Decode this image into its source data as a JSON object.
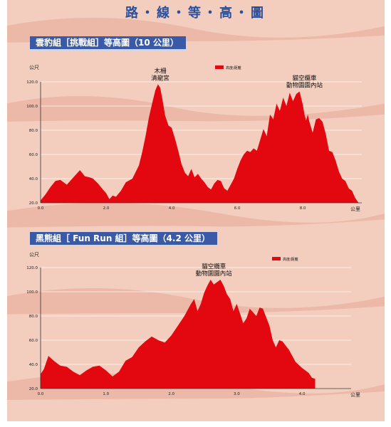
{
  "header": {
    "title": "路・線・等・高・圖"
  },
  "charts": [
    {
      "banner": "雲豹組［挑戰組］等高圖（10 公里）"
    },
    {
      "banner": "黑熊組［ Fun Run 組］等高圖（4.2 公里）"
    }
  ],
  "colors": {
    "fill": "#e3080f",
    "banner": "#3a5aa8",
    "title": "#2a4f9c",
    "panel": "#f3cdbd",
    "stripe": "#e6a895"
  },
  "chart_data": [
    {
      "type": "area",
      "title": "雲豹組［挑戰組］等高圖（10 公里）",
      "ylabel": "公尺",
      "xlabel": "公里",
      "xlim": [
        0,
        9.8
      ],
      "ylim": [
        20,
        120
      ],
      "xticks": [
        0,
        2,
        4,
        6,
        8
      ],
      "xtick_labels": [
        "0.0",
        "2.0",
        "4.0",
        "6.0",
        "8.0"
      ],
      "yticks": [
        20,
        40,
        60,
        80,
        100,
        120
      ],
      "ytick_labels": [
        "20.0",
        "40.0",
        "60.0",
        "80.0",
        "100.0",
        "120.0"
      ],
      "legend": {
        "label": "高度/距離",
        "position": "top"
      },
      "grid": true,
      "series": [
        {
          "name": "高度/距離",
          "x": [
            0.0,
            0.15,
            0.3,
            0.45,
            0.6,
            0.8,
            1.0,
            1.2,
            1.35,
            1.5,
            1.6,
            1.75,
            1.9,
            2.0,
            2.1,
            2.2,
            2.3,
            2.45,
            2.6,
            2.8,
            3.0,
            3.1,
            3.2,
            3.3,
            3.4,
            3.5,
            3.58,
            3.65,
            3.72,
            3.8,
            3.9,
            4.0,
            4.1,
            4.2,
            4.3,
            4.4,
            4.5,
            4.6,
            4.7,
            4.8,
            4.9,
            5.0,
            5.1,
            5.2,
            5.3,
            5.4,
            5.5,
            5.6,
            5.7,
            5.8,
            5.9,
            6.0,
            6.1,
            6.2,
            6.3,
            6.4,
            6.5,
            6.6,
            6.7,
            6.8,
            6.9,
            7.0,
            7.1,
            7.2,
            7.3,
            7.4,
            7.5,
            7.6,
            7.7,
            7.8,
            7.9,
            8.0,
            8.05,
            8.1,
            8.15,
            8.2,
            8.3,
            8.4,
            8.5,
            8.6,
            8.7,
            8.8,
            8.9,
            9.0,
            9.1,
            9.2,
            9.3,
            9.4,
            9.5,
            9.6,
            9.7,
            9.8
          ],
          "y": [
            22,
            27,
            33,
            38,
            39,
            35,
            41,
            47,
            42,
            41,
            40,
            36,
            31,
            28,
            23,
            26,
            25,
            30,
            37,
            40,
            51,
            62,
            75,
            90,
            102,
            113,
            118,
            115,
            105,
            92,
            84,
            82,
            73,
            63,
            52,
            45,
            42,
            48,
            41,
            44,
            40,
            37,
            33,
            31,
            36,
            39,
            38,
            32,
            30,
            35,
            40,
            48,
            55,
            60,
            63,
            62,
            65,
            63,
            72,
            81,
            75,
            93,
            89,
            102,
            96,
            107,
            100,
            111,
            104,
            110,
            112,
            101,
            93,
            88,
            93,
            87,
            78,
            89,
            90,
            87,
            77,
            63,
            62,
            55,
            46,
            40,
            38,
            32,
            30,
            24,
            20,
            20
          ]
        }
      ],
      "annotations": [
        {
          "text": [
            "木柵",
            "清龍宮"
          ],
          "x": 3.65,
          "y": 118
        },
        {
          "text": [
            "貓空纜車",
            "動物園園內站"
          ],
          "x": 8.05,
          "y": 112
        }
      ]
    },
    {
      "type": "area",
      "title": "黑熊組［ Fun Run 組］等高圖（4.2 公里）",
      "ylabel": "公尺",
      "xlabel": "公里",
      "xlim": [
        0,
        4.75
      ],
      "ylim": [
        20,
        120
      ],
      "xticks": [
        0,
        1,
        2,
        3,
        4
      ],
      "xtick_labels": [
        "0.0",
        "1.0",
        "2.0",
        "3.0",
        "4.0"
      ],
      "yticks": [
        20,
        40,
        60,
        80,
        100,
        120
      ],
      "ytick_labels": [
        "20.0",
        "40.0",
        "60.0",
        "80.0",
        "100.0",
        "120.0"
      ],
      "legend": {
        "label": "高度/距離",
        "position": "top"
      },
      "grid": true,
      "series": [
        {
          "name": "高度/距離",
          "x": [
            0.0,
            0.05,
            0.12,
            0.2,
            0.3,
            0.4,
            0.5,
            0.6,
            0.7,
            0.8,
            0.9,
            1.0,
            1.1,
            1.2,
            1.3,
            1.4,
            1.5,
            1.6,
            1.7,
            1.8,
            1.9,
            2.0,
            2.1,
            2.2,
            2.3,
            2.35,
            2.4,
            2.45,
            2.5,
            2.55,
            2.6,
            2.65,
            2.7,
            2.75,
            2.8,
            2.85,
            2.9,
            2.95,
            3.0,
            3.05,
            3.1,
            3.15,
            3.2,
            3.25,
            3.3,
            3.35,
            3.4,
            3.45,
            3.5,
            3.55,
            3.6,
            3.65,
            3.7,
            3.8,
            3.9,
            4.0,
            4.1,
            4.15,
            4.2
          ],
          "y": [
            32,
            36,
            47,
            43,
            39,
            38,
            34,
            31,
            35,
            38,
            39,
            35,
            30,
            34,
            43,
            46,
            54,
            59,
            63,
            60,
            58,
            64,
            72,
            80,
            90,
            94,
            84,
            90,
            99,
            105,
            110,
            106,
            108,
            110,
            105,
            98,
            94,
            84,
            90,
            82,
            74,
            78,
            86,
            83,
            80,
            87,
            86,
            79,
            72,
            60,
            54,
            60,
            59,
            52,
            42,
            37,
            33,
            29,
            28
          ]
        }
      ],
      "annotations": [
        {
          "text": [
            "貓空纜車",
            "動物園園內站"
          ],
          "x": 2.65,
          "y": 110
        }
      ]
    }
  ]
}
